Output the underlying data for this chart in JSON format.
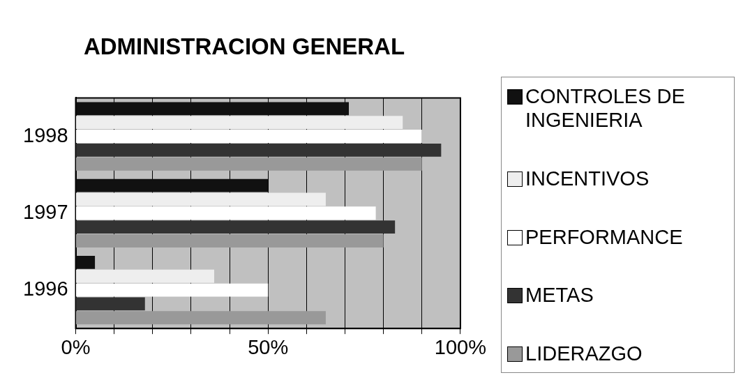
{
  "chart_data": {
    "type": "bar",
    "orientation": "horizontal",
    "title": "ADMINISTRACION GENERAL",
    "categories": [
      "1998",
      "1997",
      "1996"
    ],
    "series": [
      {
        "name": "CONTROLES DE INGENIERIA",
        "color": "#111111",
        "values": [
          71,
          50,
          5
        ]
      },
      {
        "name": "INCENTIVOS",
        "color": "#eeeeee",
        "values": [
          85,
          65,
          36
        ]
      },
      {
        "name": "PERFORMANCE",
        "color": "#ffffff",
        "values": [
          90,
          78,
          50
        ]
      },
      {
        "name": "METAS",
        "color": "#333333",
        "values": [
          95,
          83,
          18
        ]
      },
      {
        "name": "LIDERAZGO",
        "color": "#999999",
        "values": [
          90,
          80,
          65
        ]
      }
    ],
    "xlim": [
      0,
      100
    ],
    "xticks": [
      {
        "value": 0,
        "label": "0%"
      },
      {
        "value": 10,
        "label": null
      },
      {
        "value": 20,
        "label": null
      },
      {
        "value": 30,
        "label": null
      },
      {
        "value": 40,
        "label": null
      },
      {
        "value": 50,
        "label": "50%"
      },
      {
        "value": 60,
        "label": null
      },
      {
        "value": 70,
        "label": null
      },
      {
        "value": 80,
        "label": null
      },
      {
        "value": 90,
        "label": null
      },
      {
        "value": 100,
        "label": "100%"
      }
    ],
    "grid": "x",
    "legend": "right"
  }
}
